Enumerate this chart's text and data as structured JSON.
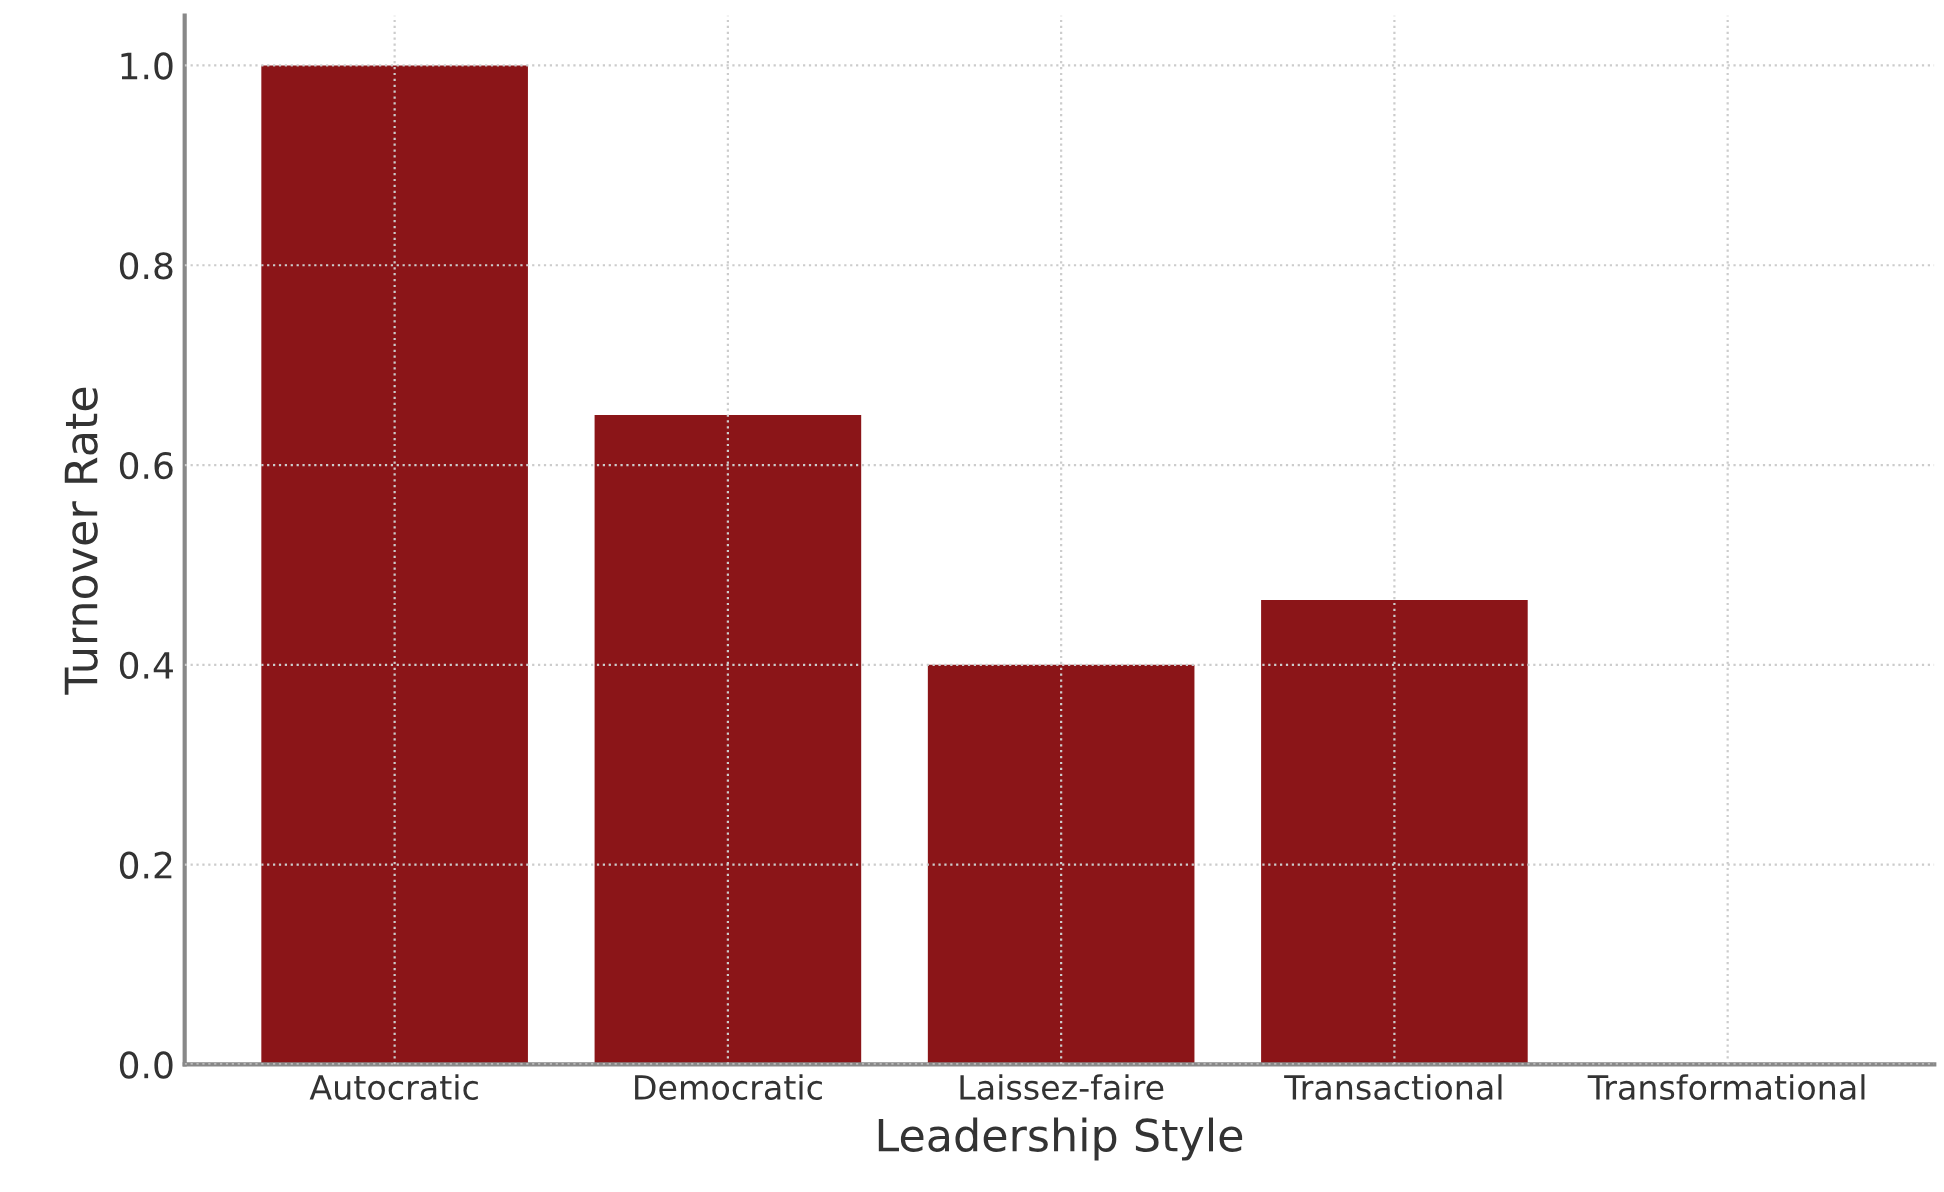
{
  "chart_data": {
    "type": "bar",
    "xlabel": "Leadership Style",
    "ylabel": "Turnover Rate",
    "categories": [
      "Autocratic",
      "Democratic",
      "Laissez-faire",
      "Transactional",
      "Transformational"
    ],
    "values": [
      1.0,
      0.65,
      0.4,
      0.465,
      0.0
    ],
    "color": "#8b1518",
    "ylim": [
      0,
      1.05
    ],
    "yticks": [
      {
        "value": 0,
        "label": "0.0"
      },
      0.2,
      0.4,
      0.6,
      0.8,
      {
        "value": 1,
        "label": "1.0"
      }
    ],
    "grid": true
  }
}
